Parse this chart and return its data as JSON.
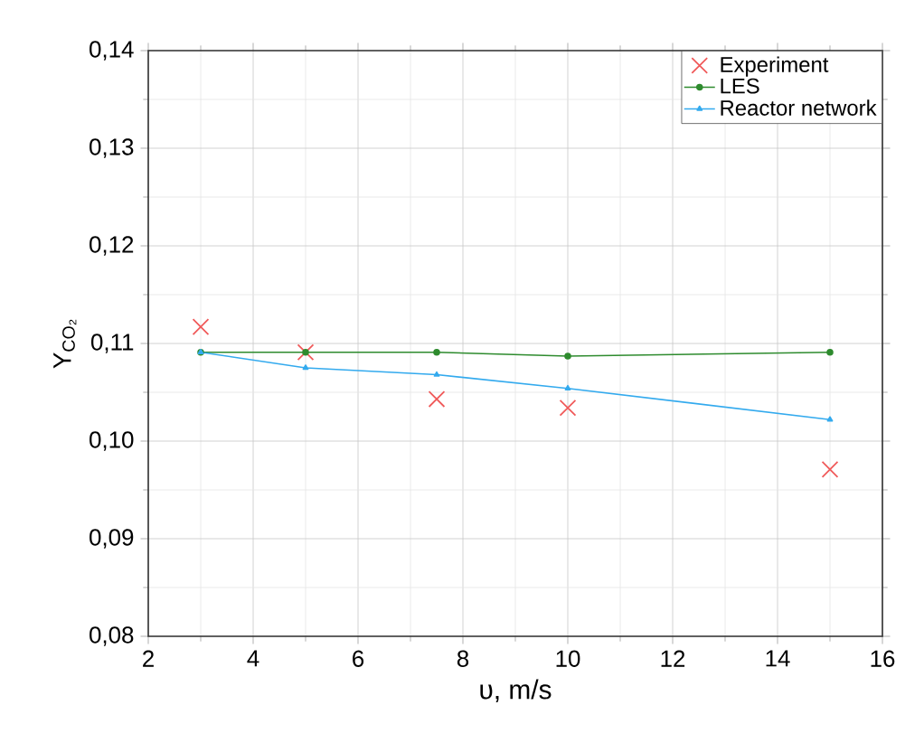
{
  "chart_data": {
    "type": "line",
    "xlabel": "υ, m/s",
    "ylabel": "Y$_{CO₂}$",
    "x": [
      3,
      5,
      7.5,
      10,
      15
    ],
    "series": [
      {
        "name": "Experiment",
        "type": "scatter",
        "marker": "cross",
        "color": "#f05a5a",
        "values": [
          0.1117,
          0.1091,
          0.1043,
          0.1034,
          0.0971
        ]
      },
      {
        "name": "LES",
        "marker": "circle",
        "color": "#2e8b2e",
        "values": [
          0.1091,
          0.1091,
          0.1091,
          0.1087,
          0.1091
        ]
      },
      {
        "name": "Reactor network",
        "marker": "triangle",
        "color": "#33aaee",
        "values": [
          0.1091,
          0.1075,
          0.1068,
          0.1054,
          0.1022
        ]
      }
    ],
    "xlim": [
      2,
      16
    ],
    "xticks": [
      2,
      4,
      6,
      8,
      10,
      12,
      14,
      16
    ],
    "ylim": [
      0.08,
      0.14
    ],
    "yticks": [
      {
        "value": 0.08,
        "label": "0,08"
      },
      {
        "value": 0.09,
        "label": "0,09"
      },
      {
        "value": 0.1,
        "label": "0,10"
      },
      {
        "value": 0.11,
        "label": "0,11"
      },
      {
        "value": 0.12,
        "label": "0,12"
      },
      {
        "value": 0.13,
        "label": "0,13"
      },
      {
        "value": 0.14,
        "label": "0,14"
      }
    ],
    "grid": true,
    "legend": "top right"
  }
}
